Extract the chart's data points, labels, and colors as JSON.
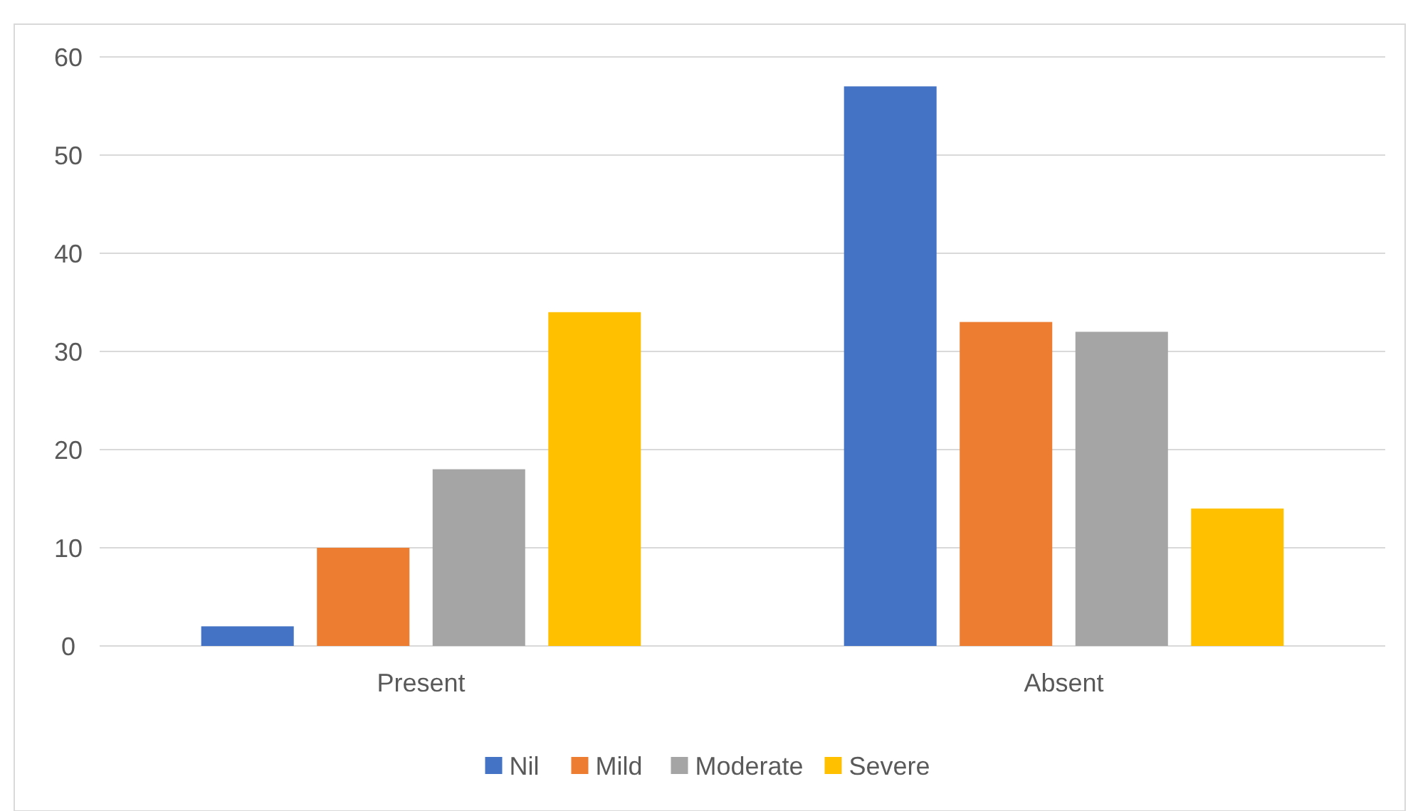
{
  "chart_data": {
    "type": "bar",
    "categories": [
      "Present",
      "Absent"
    ],
    "series": [
      {
        "name": "Nil",
        "color": "#4472c4",
        "values": [
          2,
          57
        ]
      },
      {
        "name": "Mild",
        "color": "#ed7d31",
        "values": [
          10,
          33
        ]
      },
      {
        "name": "Moderate",
        "color": "#a5a5a5",
        "values": [
          18,
          32
        ]
      },
      {
        "name": "Severe",
        "color": "#ffc000",
        "values": [
          34,
          14
        ]
      }
    ],
    "ylim": [
      0,
      60
    ],
    "yticks": [
      0,
      10,
      20,
      30,
      40,
      50,
      60
    ],
    "grid": "y",
    "legend": "bottom"
  }
}
